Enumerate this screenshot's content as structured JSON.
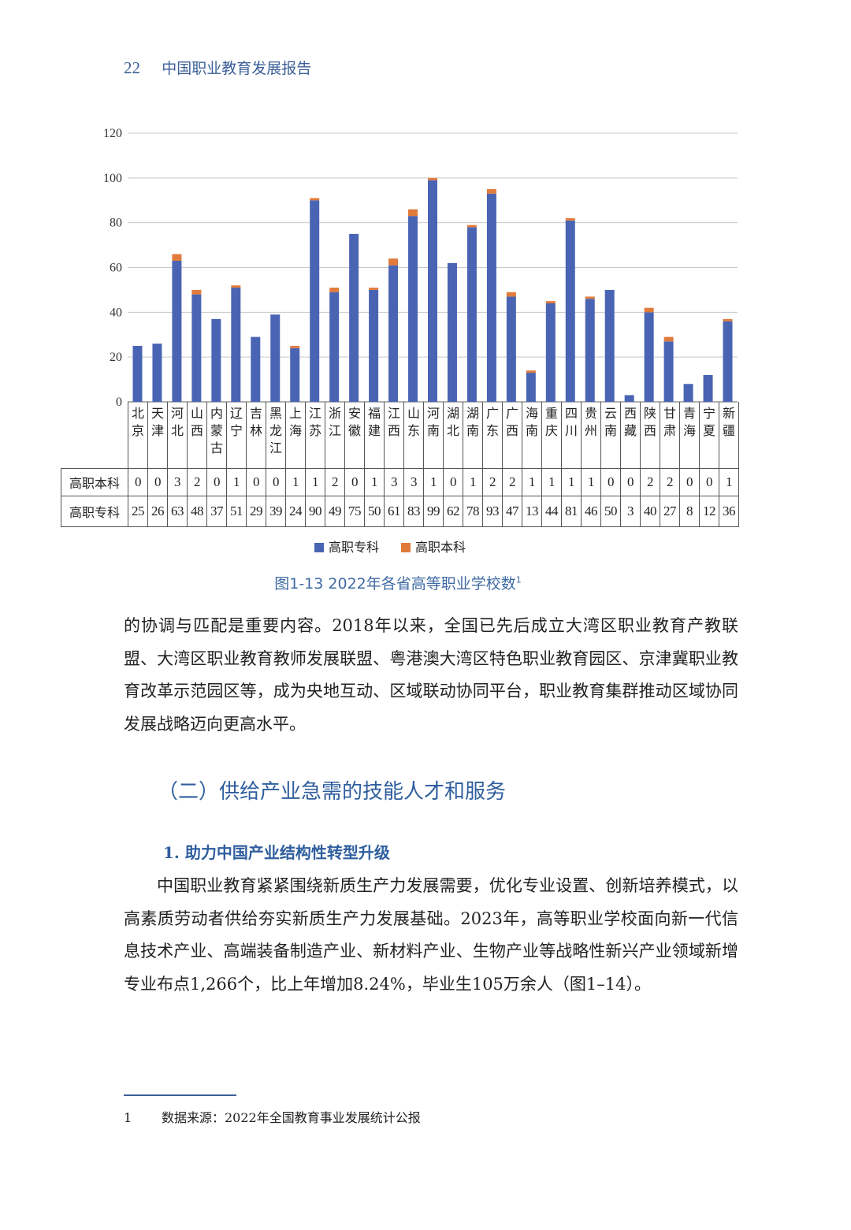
{
  "header": {
    "page_number": "22",
    "book_title": "中国职业教育发展报告"
  },
  "chart_data": {
    "type": "bar",
    "stacked": true,
    "categories": [
      "北京",
      "天津",
      "河北",
      "山西",
      "内蒙古",
      "辽宁",
      "吉林",
      "黑龙江",
      "上海",
      "江苏",
      "浙江",
      "安徽",
      "福建",
      "江西",
      "山东",
      "河南",
      "湖北",
      "湖南",
      "广东",
      "广西",
      "海南",
      "重庆",
      "四川",
      "贵州",
      "云南",
      "西藏",
      "陕西",
      "甘肃",
      "青海",
      "宁夏",
      "新疆"
    ],
    "series": [
      {
        "name": "高职专科",
        "color": "#4a64b4",
        "values": [
          25,
          26,
          63,
          48,
          37,
          51,
          29,
          39,
          24,
          90,
          49,
          75,
          50,
          61,
          83,
          99,
          62,
          78,
          93,
          47,
          13,
          44,
          81,
          46,
          50,
          3,
          40,
          27,
          8,
          12,
          36
        ]
      },
      {
        "name": "高职本科",
        "color": "#e07b3c",
        "values": [
          0,
          0,
          3,
          2,
          0,
          1,
          0,
          0,
          1,
          1,
          2,
          0,
          1,
          3,
          3,
          1,
          0,
          1,
          2,
          2,
          1,
          1,
          1,
          1,
          0,
          0,
          2,
          2,
          0,
          0,
          1
        ]
      }
    ],
    "yticks": [
      0,
      20,
      40,
      60,
      80,
      100,
      120
    ],
    "ylim": [
      0,
      120
    ],
    "grid": true,
    "legend": "bottom",
    "data_table": true,
    "table_row_order": [
      "高职本科",
      "高职专科"
    ],
    "caption": "图1-13  2022年各省高等职业学校数",
    "caption_note": "1"
  },
  "body": {
    "para1": "的协调与匹配是重要内容。2018年以来，全国已先后成立大湾区职业教育产教联盟、大湾区职业教育教师发展联盟、粤港澳大湾区特色职业教育园区、京津冀职业教育改革示范园区等，成为央地互动、区域联动协同平台，职业教育集群推动区域协同发展战略迈向更高水平。",
    "heading2": "（二）供给产业急需的技能人才和服务",
    "heading3": "1. 助力中国产业结构性转型升级",
    "para2": "中国职业教育紧紧围绕新质生产力发展需要，优化专业设置、创新培养模式，以高素质劳动者供给夯实新质生产力发展基础。2023年，高等职业学校面向新一代信息技术产业、高端装备制造产业、新材料产业、生物产业等战略性新兴产业领域新增专业布点1,266个，比上年增加8.24%，毕业生105万余人（图1–14）。"
  },
  "footnote": {
    "number": "1",
    "text": "数据来源：2022年全国教育事业发展统计公报"
  }
}
